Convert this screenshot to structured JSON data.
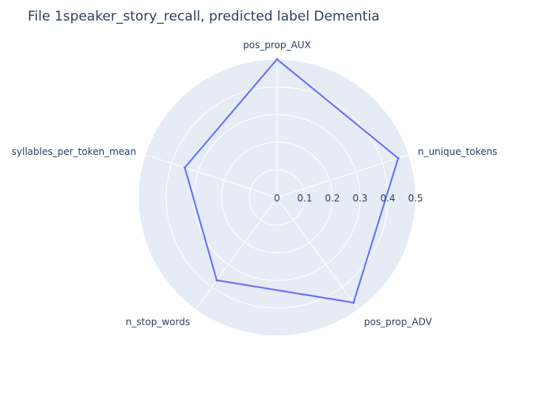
{
  "chart_data": {
    "type": "radar",
    "title": "File 1speaker_story_recall, predicted label Dementia",
    "axes": [
      "pos_prop_AUX",
      "n_unique_tokens",
      "pos_prop_ADV",
      "n_stop_words",
      "syllables_per_token_mean"
    ],
    "values": [
      0.5,
      0.46,
      0.47,
      0.37,
      0.35
    ],
    "radial_ticks": [
      "0",
      "0.1",
      "0.2",
      "0.3",
      "0.4",
      "0.5"
    ],
    "radial_range": [
      0,
      0.5
    ],
    "grid": true,
    "legend": false,
    "colors": {
      "line": "#636efa",
      "polar_bg": "#e5ecf6",
      "grid": "#ffffff",
      "text": "#2a3f5f"
    }
  }
}
